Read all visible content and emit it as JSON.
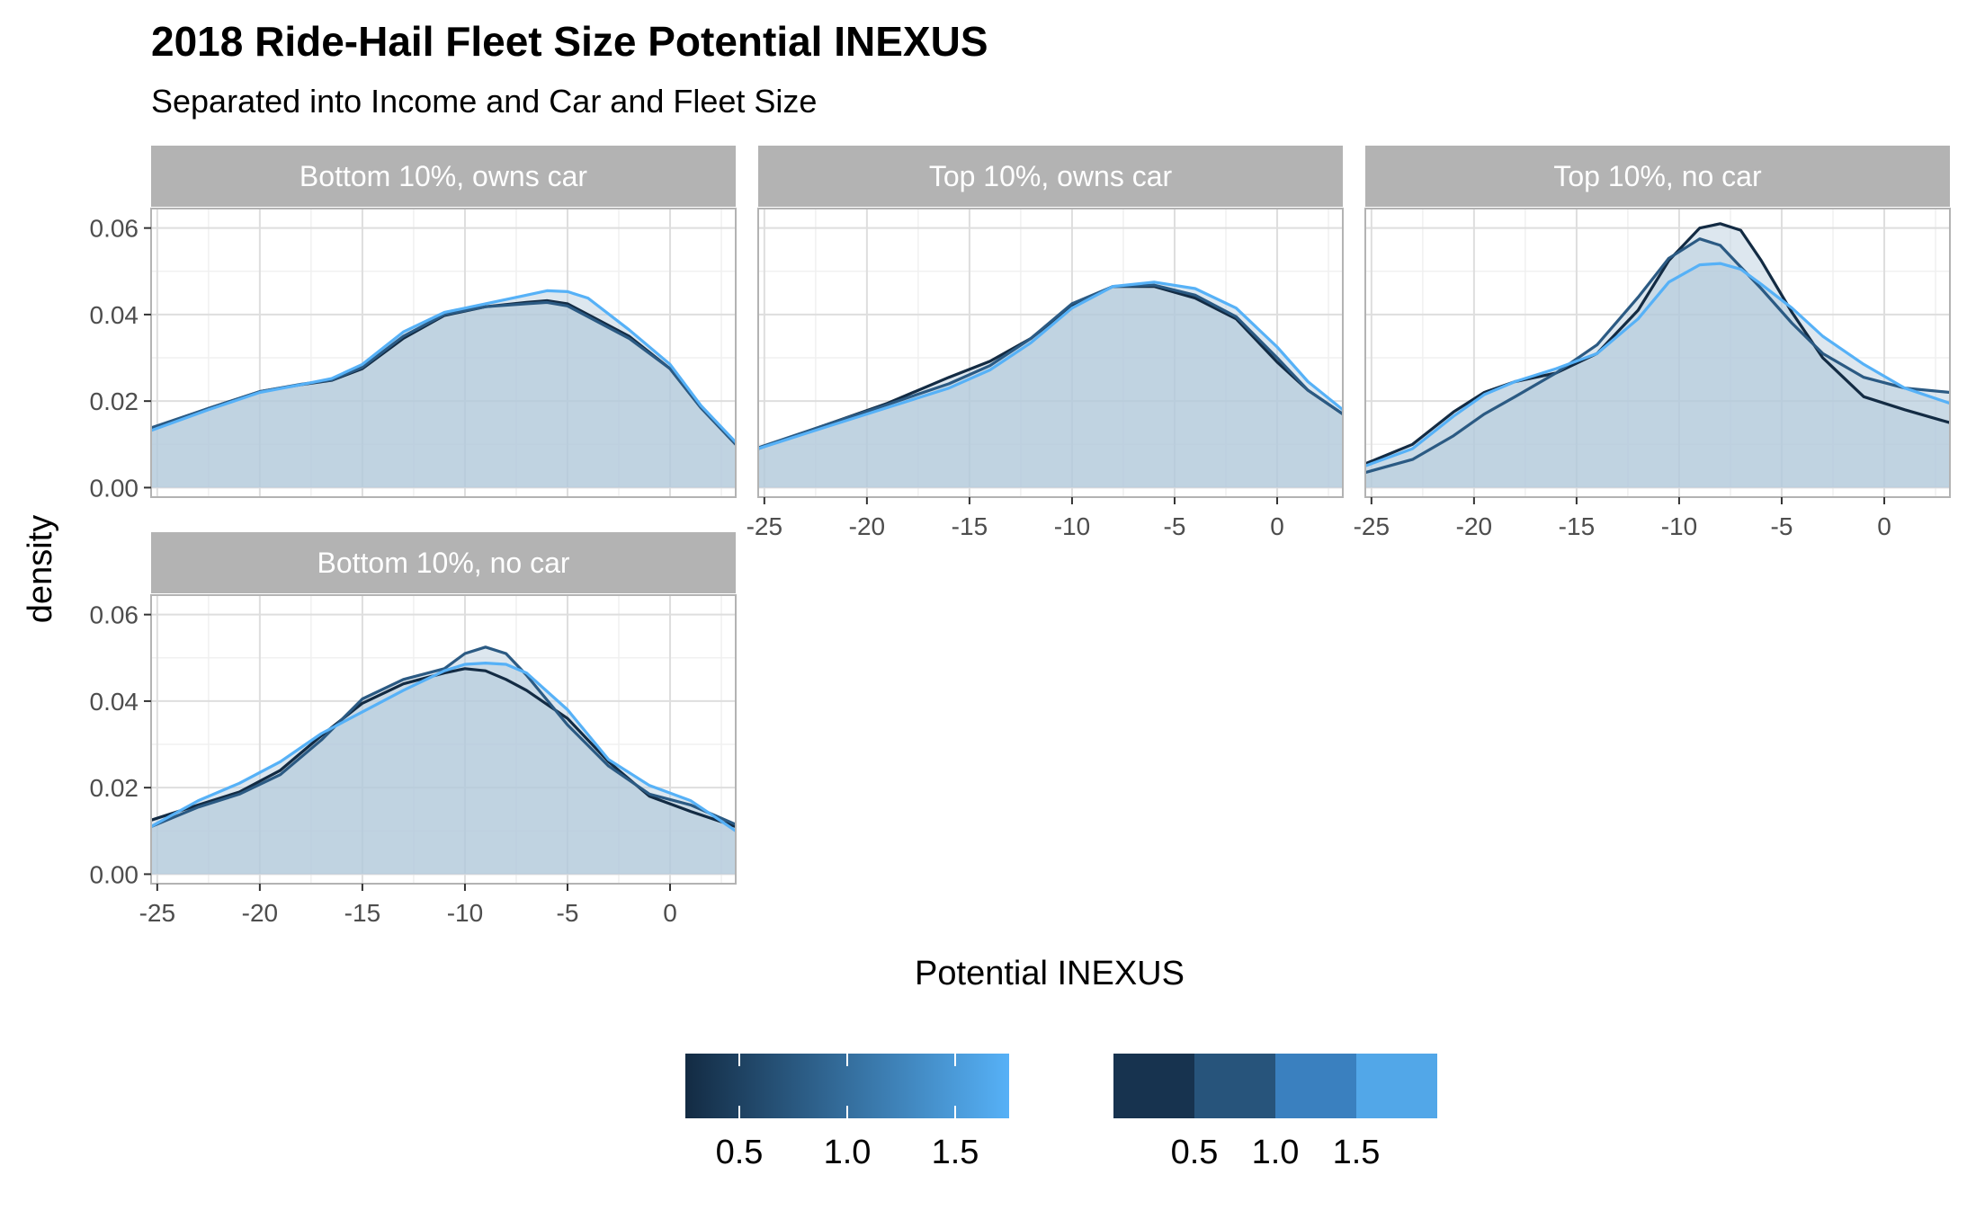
{
  "title": "2018 Ride-Hail Fleet Size Potential INEXUS",
  "subtitle": "Separated into Income and Car and Fleet Size",
  "chart_data": {
    "type": "area",
    "subtype": "density",
    "xlabel": "Potential INEXUS",
    "ylabel": "density",
    "xlim": [
      -25.3,
      3.2
    ],
    "ylim": [
      -0.0022,
      0.0645
    ],
    "x_ticks": [
      -25,
      -20,
      -15,
      -10,
      -5,
      0
    ],
    "x_tick_labels": [
      "-25",
      "-20",
      "-15",
      "-10",
      "-5",
      "0"
    ],
    "y_ticks": [
      0,
      0.02,
      0.04,
      0.06
    ],
    "y_tick_labels": [
      "0.00",
      "0.02",
      "0.04",
      "0.06"
    ],
    "grid": true,
    "fill_color": "#b3c9db",
    "line_colors": [
      "#132b43",
      "#2b5a83",
      "#56b1f7"
    ],
    "legends": [
      {
        "type": "colorbar",
        "labels": [
          "0.5",
          "1.0",
          "1.5"
        ],
        "values": [
          0.5,
          1.0,
          1.5
        ],
        "range": [
          0.25,
          1.75
        ],
        "colors": [
          "#132b43",
          "#56b1f7"
        ]
      },
      {
        "type": "binned",
        "labels": [
          "0.5",
          "1.0",
          "1.5"
        ],
        "colors": [
          "#17334f",
          "#27547b",
          "#3a80bf",
          "#52a7e8"
        ]
      }
    ],
    "panels": [
      {
        "label": "Bottom 10%, owns car",
        "series": [
          {
            "fleet_size": 0.5,
            "x": [
              -25.3,
              -22.5,
              -20,
              -18,
              -16.5,
              -15,
              -13,
              -11,
              -9,
              -7,
              -6,
              -5,
              -4,
              -2,
              0,
              1.5,
              3.2
            ],
            "y": [
              0.0135,
              0.0183,
              0.0222,
              0.0238,
              0.0248,
              0.0275,
              0.0345,
              0.0398,
              0.0418,
              0.0428,
              0.0432,
              0.0425,
              0.04,
              0.035,
              0.0275,
              0.0185,
              0.01
            ]
          },
          {
            "fleet_size": 1.0,
            "x": [
              -25.3,
              -22.5,
              -20,
              -18,
              -16.5,
              -15,
              -13,
              -11,
              -9,
              -7,
              -6,
              -5,
              -4,
              -2,
              0,
              1.5,
              3.2
            ],
            "y": [
              0.0138,
              0.0183,
              0.0222,
              0.0239,
              0.0249,
              0.0278,
              0.035,
              0.04,
              0.0418,
              0.0425,
              0.0428,
              0.042,
              0.0395,
              0.0345,
              0.0275,
              0.0185,
              0.01
            ]
          },
          {
            "fleet_size": 1.5,
            "x": [
              -25.3,
              -22.5,
              -20,
              -18,
              -16.5,
              -15,
              -13,
              -11,
              -9,
              -7,
              -6,
              -5,
              -4,
              -2,
              0,
              1.5,
              3.2
            ],
            "y": [
              0.0132,
              0.018,
              0.022,
              0.0238,
              0.0252,
              0.0285,
              0.036,
              0.0405,
              0.0425,
              0.0445,
              0.0455,
              0.0453,
              0.0438,
              0.0365,
              0.0285,
              0.019,
              0.0105
            ]
          }
        ]
      },
      {
        "label": "Top 10%, owns car",
        "series": [
          {
            "fleet_size": 0.5,
            "x": [
              -25.3,
              -22,
              -19,
              -16,
              -14,
              -12,
              -10,
              -8,
              -6,
              -4,
              -2,
              0,
              1.5,
              3.2
            ],
            "y": [
              0.009,
              0.0145,
              0.0195,
              0.0255,
              0.0292,
              0.0345,
              0.042,
              0.0465,
              0.0465,
              0.0438,
              0.039,
              0.029,
              0.0225,
              0.017
            ]
          },
          {
            "fleet_size": 1.0,
            "x": [
              -25.3,
              -22,
              -19,
              -16,
              -14,
              -12,
              -10,
              -8,
              -6,
              -4,
              -2,
              0,
              1.5,
              3.2
            ],
            "y": [
              0.0092,
              0.0145,
              0.0192,
              0.024,
              0.0282,
              0.0345,
              0.0425,
              0.0465,
              0.0468,
              0.0445,
              0.0395,
              0.03,
              0.0225,
              0.017
            ]
          },
          {
            "fleet_size": 1.5,
            "x": [
              -25.3,
              -22,
              -19,
              -16,
              -14,
              -12,
              -10,
              -8,
              -6,
              -4,
              -2,
              0,
              1.5,
              3.2
            ],
            "y": [
              0.009,
              0.014,
              0.0185,
              0.023,
              0.0272,
              0.0335,
              0.0415,
              0.0465,
              0.0475,
              0.046,
              0.0415,
              0.0325,
              0.0245,
              0.018
            ]
          }
        ]
      },
      {
        "label": "Top 10%, no car",
        "series": [
          {
            "fleet_size": 0.5,
            "x": [
              -25.3,
              -23,
              -21,
              -19.5,
              -18,
              -16,
              -14,
              -12,
              -10.5,
              -9,
              -8,
              -7,
              -6,
              -4.5,
              -3,
              -1,
              1,
              3.2
            ],
            "y": [
              0.0055,
              0.01,
              0.0175,
              0.022,
              0.0245,
              0.0265,
              0.031,
              0.041,
              0.0525,
              0.06,
              0.061,
              0.0595,
              0.0525,
              0.0405,
              0.03,
              0.021,
              0.018,
              0.015
            ]
          },
          {
            "fleet_size": 1.0,
            "x": [
              -25.3,
              -23,
              -21,
              -19.5,
              -18,
              -16,
              -14,
              -12,
              -10.5,
              -9,
              -8,
              -7,
              -6,
              -4.5,
              -3,
              -1,
              1,
              3.2
            ],
            "y": [
              0.0035,
              0.0065,
              0.012,
              0.017,
              0.021,
              0.0265,
              0.033,
              0.044,
              0.053,
              0.0575,
              0.056,
              0.051,
              0.046,
              0.038,
              0.031,
              0.0255,
              0.023,
              0.022
            ]
          },
          {
            "fleet_size": 1.5,
            "x": [
              -25.3,
              -23,
              -21,
              -19.5,
              -18,
              -16,
              -14,
              -12,
              -10.5,
              -9,
              -8,
              -7,
              -6,
              -4.5,
              -3,
              -1,
              1,
              3.2
            ],
            "y": [
              0.005,
              0.009,
              0.0165,
              0.0215,
              0.0245,
              0.0275,
              0.031,
              0.039,
              0.0475,
              0.0515,
              0.0518,
              0.0505,
              0.047,
              0.0415,
              0.035,
              0.0285,
              0.023,
              0.0195
            ]
          }
        ]
      },
      {
        "label": "Bottom 10%, no car",
        "series": [
          {
            "fleet_size": 0.5,
            "x": [
              -25.3,
              -23,
              -21,
              -19,
              -17,
              -15,
              -13,
              -11,
              -10,
              -9,
              -8,
              -7,
              -5,
              -3,
              -1,
              1,
              3.2
            ],
            "y": [
              0.0125,
              0.016,
              0.019,
              0.024,
              0.032,
              0.0395,
              0.044,
              0.0465,
              0.0475,
              0.047,
              0.045,
              0.0425,
              0.036,
              0.026,
              0.018,
              0.0145,
              0.011
            ]
          },
          {
            "fleet_size": 1.0,
            "x": [
              -25.3,
              -23,
              -21,
              -19,
              -17,
              -15,
              -13,
              -11,
              -10,
              -9,
              -8,
              -7,
              -5,
              -3,
              -1,
              1,
              3.2
            ],
            "y": [
              0.011,
              0.0155,
              0.0185,
              0.023,
              0.031,
              0.0405,
              0.045,
              0.0475,
              0.051,
              0.0525,
              0.051,
              0.046,
              0.0345,
              0.025,
              0.0185,
              0.016,
              0.0115
            ]
          },
          {
            "fleet_size": 1.5,
            "x": [
              -25.3,
              -23,
              -21,
              -19,
              -17,
              -15,
              -13,
              -11,
              -10,
              -9,
              -8,
              -7,
              -5,
              -3,
              -1,
              1,
              3.2
            ],
            "y": [
              0.011,
              0.017,
              0.021,
              0.026,
              0.0325,
              0.0375,
              0.0425,
              0.047,
              0.0485,
              0.0488,
              0.0485,
              0.0465,
              0.038,
              0.0265,
              0.0205,
              0.017,
              0.01
            ]
          }
        ]
      }
    ]
  }
}
